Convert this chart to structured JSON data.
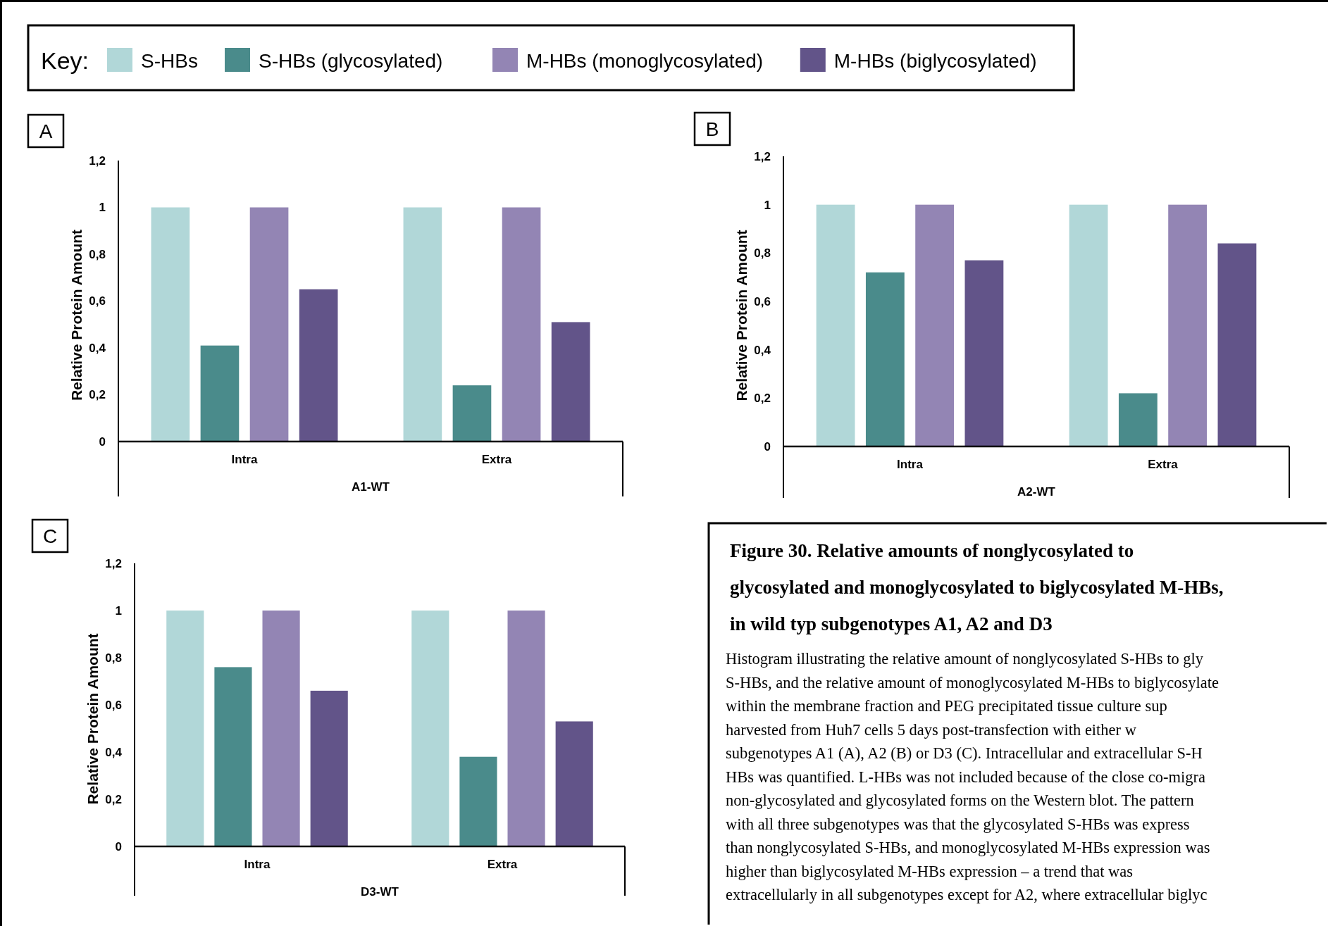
{
  "chart_data": [
    {
      "type": "bar",
      "title": "A",
      "xlabel": "A1-WT",
      "ylabel": "Relative Protein Amount",
      "legend": "top",
      "legend_title": "Key:",
      "categories": [
        "Intra",
        "Extra"
      ],
      "ylim": [
        0,
        1.2
      ],
      "yticks": [
        {
          "value": 0,
          "label": "0"
        },
        {
          "value": 0.2,
          "label": "0,2"
        },
        {
          "value": 0.4,
          "label": "0,4"
        },
        {
          "value": 0.6,
          "label": "0,6"
        },
        {
          "value": 0.8,
          "label": "0,8"
        },
        {
          "value": 1,
          "label": "1"
        },
        {
          "value": 1.2,
          "label": "1,2"
        }
      ],
      "grid": false,
      "series": [
        {
          "name": "S-HBs",
          "color": "#b1d7d8",
          "values": [
            1,
            1
          ]
        },
        {
          "name": "S-HBs (glycosylated)",
          "color": "#4a8b8b",
          "values": [
            0.41,
            0.24
          ]
        },
        {
          "name": "M-HBs (monoglycosylated)",
          "color": "#9385b4",
          "values": [
            1,
            1
          ]
        },
        {
          "name": "M-HBs (biglycosylated)",
          "color": "#625489",
          "values": [
            0.65,
            0.51
          ]
        }
      ]
    },
    {
      "type": "bar",
      "title": "B",
      "xlabel": "A2-WT",
      "ylabel": "Relative Protein Amount",
      "categories": [
        "Intra",
        "Extra"
      ],
      "ylim": [
        0,
        1.2
      ],
      "yticks": [
        {
          "value": 0,
          "label": "0"
        },
        {
          "value": 0.2,
          "label": "0,2"
        },
        {
          "value": 0.4,
          "label": "0,4"
        },
        {
          "value": 0.6,
          "label": "0,6"
        },
        {
          "value": 0.8,
          "label": "0,8"
        },
        {
          "value": 1,
          "label": "1"
        },
        {
          "value": 1.2,
          "label": "1,2"
        }
      ],
      "grid": false,
      "series": [
        {
          "color": "#b1d7d8",
          "values": [
            1,
            1
          ]
        },
        {
          "color": "#4a8b8b",
          "values": [
            0.72,
            0.22
          ]
        },
        {
          "color": "#9385b4",
          "values": [
            1,
            1
          ]
        },
        {
          "color": "#625489",
          "values": [
            0.77,
            0.84
          ]
        }
      ]
    },
    {
      "type": "bar",
      "title": "C",
      "xlabel": "D3-WT",
      "ylabel": "Relative Protein Amount",
      "categories": [
        "Intra",
        "Extra"
      ],
      "ylim": [
        0,
        1.2
      ],
      "yticks": [
        {
          "value": 0,
          "label": "0"
        },
        {
          "value": 0.2,
          "label": "0,2"
        },
        {
          "value": 0.4,
          "label": "0,4"
        },
        {
          "value": 0.6,
          "label": "0,6"
        },
        {
          "value": 0.8,
          "label": "0,8"
        },
        {
          "value": 1,
          "label": "1"
        },
        {
          "value": 1.2,
          "label": "1,2"
        }
      ],
      "grid": false,
      "series": [
        {
          "color": "#b1d7d8",
          "values": [
            1,
            1
          ]
        },
        {
          "color": "#4a8b8b",
          "values": [
            0.76,
            0.38
          ]
        },
        {
          "color": "#9385b4",
          "values": [
            1,
            1
          ]
        },
        {
          "color": "#625489",
          "values": [
            0.66,
            0.53
          ]
        }
      ]
    },
    {
      "type": "other",
      "title": "Figure 30. Relative amounts of nonglycosylated to glycosylated and monoglycosylated to biglycosylated M-HBs, in wild typ subgenotypes A1, A2 and D3",
      "annotations": [
        "Histogram illustrating the relative amount of nonglycosylated S-HBs to gly",
        "S-HBs, and the relative amount of monoglycosylated M-HBs to biglycosylate",
        "within the membrane fraction and PEG precipitated tissue culture sup",
        "harvested from Huh7 cells 5 days post-transfection with either w",
        "subgenotypes A1 (A), A2 (B) or D3 (C). Intracellular and extracellular S-H",
        "HBs was quantified.  L-HBs was not included because of the close co-migra",
        "non-glycosylated and glycosylated forms on the Western blot. The pattern",
        "with all three subgenotypes was that the glycosylated S-HBs was express",
        "than nonglycosylated S-HBs, and monoglycosylated M-HBs expression was",
        "higher than biglycosylated M-HBs expression – a trend that was",
        "extracellularly in all subgenotypes except for A2, where extracellular biglyc"
      ]
    }
  ]
}
